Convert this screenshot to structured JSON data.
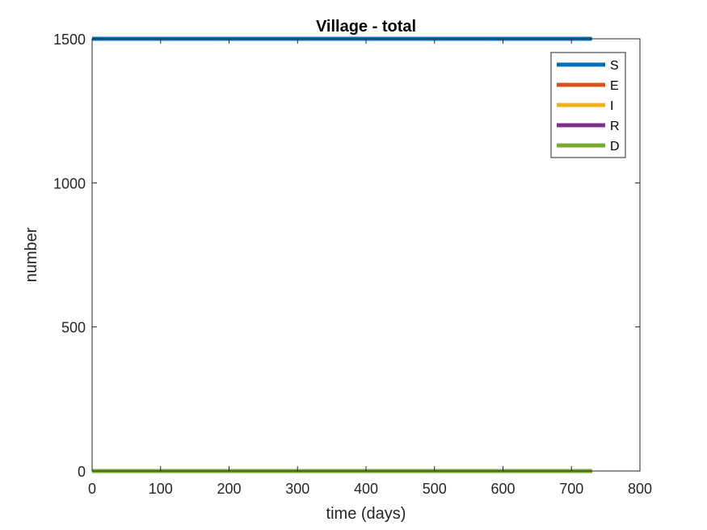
{
  "chart_data": {
    "type": "line",
    "title": "Village - total",
    "xlabel": "time (days)",
    "ylabel": "number",
    "xlim": [
      0,
      800
    ],
    "ylim": [
      0,
      1500
    ],
    "xticks": [
      0,
      100,
      200,
      300,
      400,
      500,
      600,
      700,
      800
    ],
    "yticks": [
      0,
      500,
      1000,
      1500
    ],
    "xtick_labels": [
      "0",
      "100",
      "200",
      "300",
      "400",
      "500",
      "600",
      "700",
      "800"
    ],
    "ytick_labels": [
      "0",
      "500",
      "1000",
      "1500"
    ],
    "grid": false,
    "legend_position": "top-right",
    "x": [
      0,
      730
    ],
    "series": [
      {
        "name": "S",
        "color": "#0072BD",
        "values": [
          1500,
          1500
        ]
      },
      {
        "name": "E",
        "color": "#D95319",
        "values": [
          0,
          0
        ]
      },
      {
        "name": "I",
        "color": "#EDB120",
        "values": [
          0,
          0
        ]
      },
      {
        "name": "R",
        "color": "#7E2F8E",
        "values": [
          0,
          0
        ]
      },
      {
        "name": "D",
        "color": "#77AC30",
        "values": [
          0,
          0
        ]
      }
    ]
  }
}
